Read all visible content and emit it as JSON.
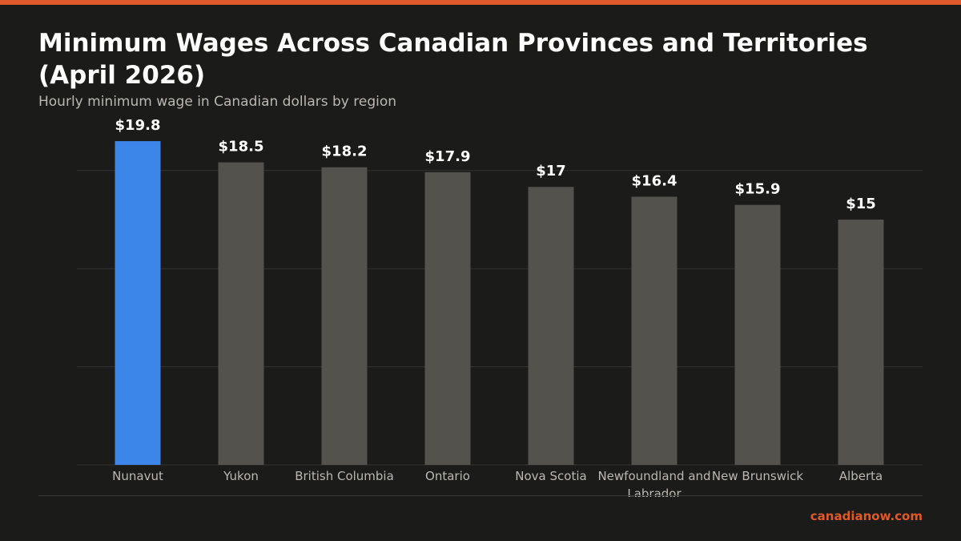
{
  "header": {
    "title": "Minimum Wages Across Canadian Provinces and Territories (April 2026)",
    "subtitle": "Hourly minimum wage in Canadian dollars by region"
  },
  "footer": {
    "source": "canadianow.com"
  },
  "colors": {
    "accent": "#e0592a",
    "highlight_bar": "#3b86e8",
    "bar": "#53524d",
    "grid": "#33332f",
    "tick_label": "#b9b8b1",
    "value_label": "#ffffff"
  },
  "chart_data": {
    "type": "bar",
    "categories": [
      "Nunavut",
      "Yukon",
      "British Columbia",
      "Ontario",
      "Nova Scotia",
      "Newfoundland and Labrador",
      "New Brunswick",
      "Alberta"
    ],
    "values": [
      19.8,
      18.5,
      18.2,
      17.9,
      17,
      16.4,
      15.9,
      15
    ],
    "value_labels": [
      "$19.8",
      "$18.5",
      "$18.2",
      "$17.9",
      "$17",
      "$16.4",
      "$15.9",
      "$15"
    ],
    "highlight_index": 0,
    "ylim": [
      0,
      20
    ],
    "grid": true,
    "gridlines": [
      0,
      6,
      12,
      18
    ],
    "y_tick_labels_shown": false,
    "legend": "none"
  }
}
